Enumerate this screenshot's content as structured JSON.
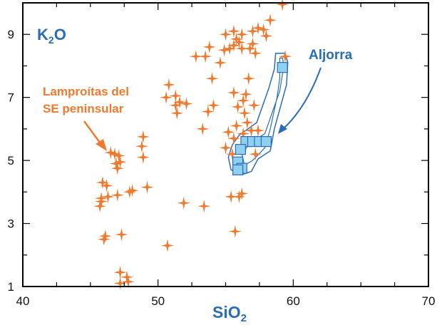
{
  "chart_data": {
    "type": "scatter",
    "xlabel": "SiO",
    "xlabel_sub": "2",
    "ylabel": "K",
    "ylabel_sub": "2",
    "ylabel_suffix": "O",
    "xlim": [
      40,
      70
    ],
    "ylim": [
      1,
      10
    ],
    "x_ticks": [
      40,
      50,
      60,
      70
    ],
    "y_ticks": [
      1,
      3,
      5,
      7,
      9
    ],
    "grid": false,
    "colors": {
      "star": "#ee7a2f",
      "square_fill": "#8fd0f0",
      "square_stroke": "#2a6db5",
      "outline": "#2a6db5",
      "axis": "#000000"
    },
    "annotations": {
      "lamproitas_line1": "Lamproítas del",
      "lamproitas_line2": "SE peninsular",
      "aljorra": "Aljorra"
    },
    "series": [
      {
        "name": "Lamproítas del SE peninsular",
        "marker": "star",
        "points": [
          [
            59.2,
            9.95
          ],
          [
            55.0,
            9.0
          ],
          [
            55.6,
            9.1
          ],
          [
            56.2,
            9.0
          ],
          [
            57.0,
            9.1
          ],
          [
            57.4,
            9.2
          ],
          [
            57.8,
            9.15
          ],
          [
            58.3,
            9.45
          ],
          [
            58.0,
            8.95
          ],
          [
            55.8,
            8.85
          ],
          [
            56.0,
            8.75
          ],
          [
            56.2,
            8.55
          ],
          [
            55.3,
            8.55
          ],
          [
            55.6,
            8.65
          ],
          [
            54.9,
            8.5
          ],
          [
            57.0,
            8.7
          ],
          [
            56.8,
            8.55
          ],
          [
            57.2,
            8.4
          ],
          [
            53.8,
            8.6
          ],
          [
            53.5,
            8.3
          ],
          [
            52.8,
            8.3
          ],
          [
            54.6,
            8.1
          ],
          [
            59.4,
            8.3
          ],
          [
            54.0,
            7.6
          ],
          [
            56.7,
            7.6
          ],
          [
            56.5,
            7.1
          ],
          [
            56.3,
            6.9
          ],
          [
            55.6,
            7.15
          ],
          [
            55.9,
            6.7
          ],
          [
            57.1,
            6.75
          ],
          [
            56.4,
            6.5
          ],
          [
            56.6,
            6.2
          ],
          [
            56.9,
            5.95
          ],
          [
            56.3,
            5.85
          ],
          [
            57.4,
            5.95
          ],
          [
            54.1,
            6.75
          ],
          [
            53.7,
            6.55
          ],
          [
            53.3,
            6.0
          ],
          [
            55.8,
            6.1
          ],
          [
            55.2,
            5.9
          ],
          [
            55.6,
            5.7
          ],
          [
            55.0,
            5.4
          ],
          [
            55.5,
            5.2
          ],
          [
            57.2,
            5.2
          ],
          [
            56.1,
            4.8
          ],
          [
            56.2,
            3.95
          ],
          [
            56.0,
            3.85
          ],
          [
            55.4,
            3.85
          ],
          [
            55.7,
            2.75
          ],
          [
            53.4,
            3.55
          ],
          [
            51.9,
            3.65
          ],
          [
            50.7,
            2.3
          ],
          [
            50.6,
            7.0
          ],
          [
            50.8,
            7.4
          ],
          [
            51.3,
            7.05
          ],
          [
            51.6,
            6.85
          ],
          [
            51.4,
            6.5
          ],
          [
            52.1,
            6.8
          ],
          [
            51.3,
            6.75
          ],
          [
            48.9,
            5.75
          ],
          [
            48.8,
            5.45
          ],
          [
            48.9,
            5.1
          ],
          [
            46.5,
            5.25
          ],
          [
            46.8,
            5.2
          ],
          [
            47.1,
            5.15
          ],
          [
            47.2,
            4.95
          ],
          [
            46.9,
            4.9
          ],
          [
            47.0,
            4.75
          ],
          [
            45.9,
            4.3
          ],
          [
            46.2,
            4.2
          ],
          [
            46.3,
            3.85
          ],
          [
            45.8,
            3.8
          ],
          [
            45.8,
            3.7
          ],
          [
            45.7,
            3.55
          ],
          [
            47.0,
            3.9
          ],
          [
            47.9,
            4.0
          ],
          [
            48.1,
            4.05
          ],
          [
            49.2,
            4.15
          ],
          [
            46.1,
            2.6
          ],
          [
            46.0,
            2.5
          ],
          [
            47.3,
            2.65
          ],
          [
            47.2,
            1.45
          ],
          [
            47.7,
            1.3
          ],
          [
            47.8,
            1.15
          ],
          [
            47.2,
            1.1
          ]
        ]
      },
      {
        "name": "Aljorra",
        "marker": "square",
        "points": [
          [
            59.2,
            7.95
          ],
          [
            56.5,
            5.6
          ],
          [
            57.0,
            5.6
          ],
          [
            57.5,
            5.6
          ],
          [
            58.0,
            5.6
          ],
          [
            56.1,
            5.35
          ],
          [
            55.9,
            4.95
          ],
          [
            56.2,
            4.75
          ],
          [
            55.9,
            4.7
          ]
        ]
      }
    ]
  }
}
